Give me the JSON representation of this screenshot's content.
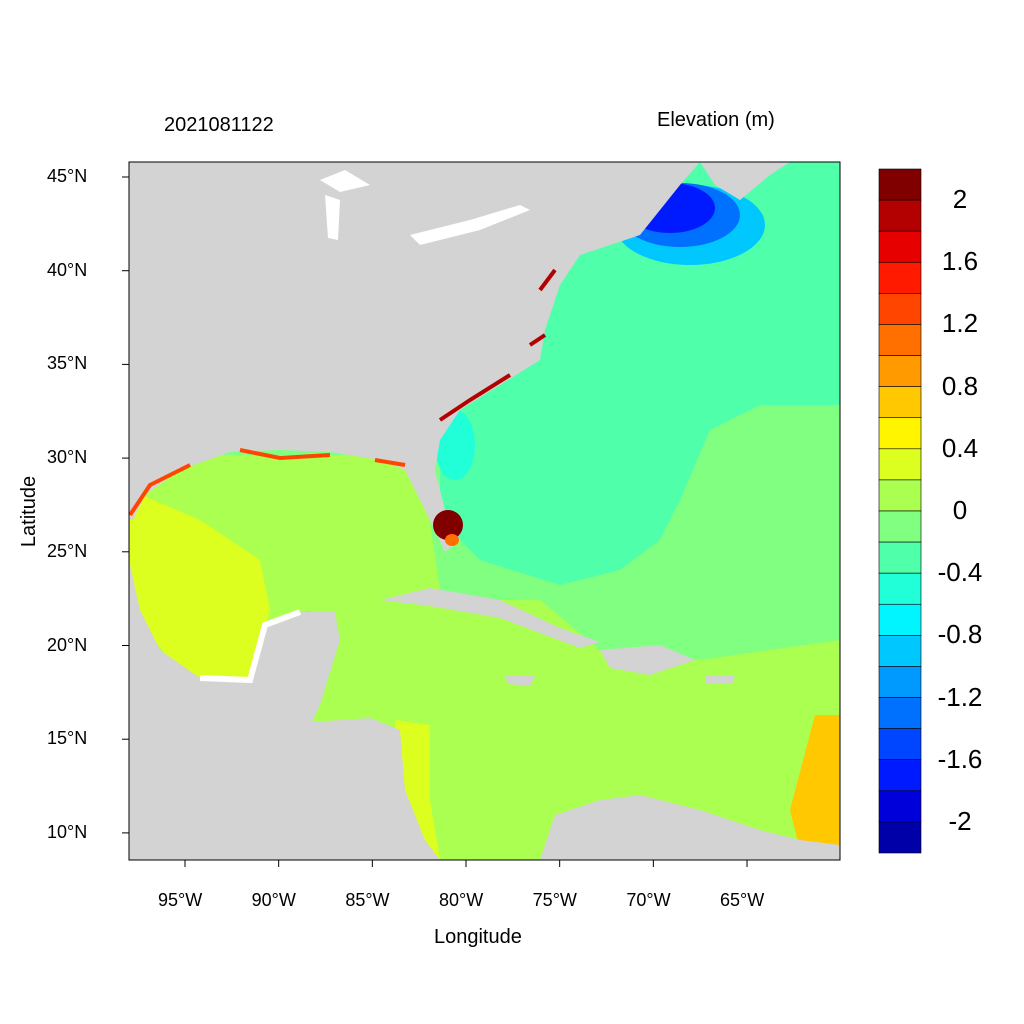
{
  "header": {
    "timestamp": "2021081122",
    "variable_title": "Elevation (m)"
  },
  "axes": {
    "xlabel": "Longitude",
    "ylabel": "Latitude",
    "x_ticks": [
      "95°W",
      "90°W",
      "85°W",
      "80°W",
      "75°W",
      "70°W",
      "65°W"
    ],
    "y_ticks": [
      "45°N",
      "40°N",
      "35°N",
      "30°N",
      "25°N",
      "20°N",
      "15°N",
      "10°N"
    ],
    "lon_range": [
      -98,
      -60
    ],
    "lat_range": [
      8.6,
      45.8
    ]
  },
  "colorbar": {
    "labels": [
      "2",
      "1.6",
      "1.2",
      "0.8",
      "0.4",
      "0",
      "-0.4",
      "-0.8",
      "-1.2",
      "-1.6",
      "-2"
    ],
    "colors": [
      "#800000",
      "#B30000",
      "#E60000",
      "#FF1A00",
      "#FF4500",
      "#FF7000",
      "#FF9A00",
      "#FFC800",
      "#FFF500",
      "#DCFF20",
      "#AAFF50",
      "#80FF80",
      "#50FFAA",
      "#20FFD8",
      "#00F5FF",
      "#00C8FF",
      "#009AFF",
      "#0070FF",
      "#0045FF",
      "#001AFF",
      "#0000DA",
      "#0000A8"
    ]
  },
  "colors": {
    "land": "#D3D3D3",
    "lakes": "#FFFFFF"
  }
}
